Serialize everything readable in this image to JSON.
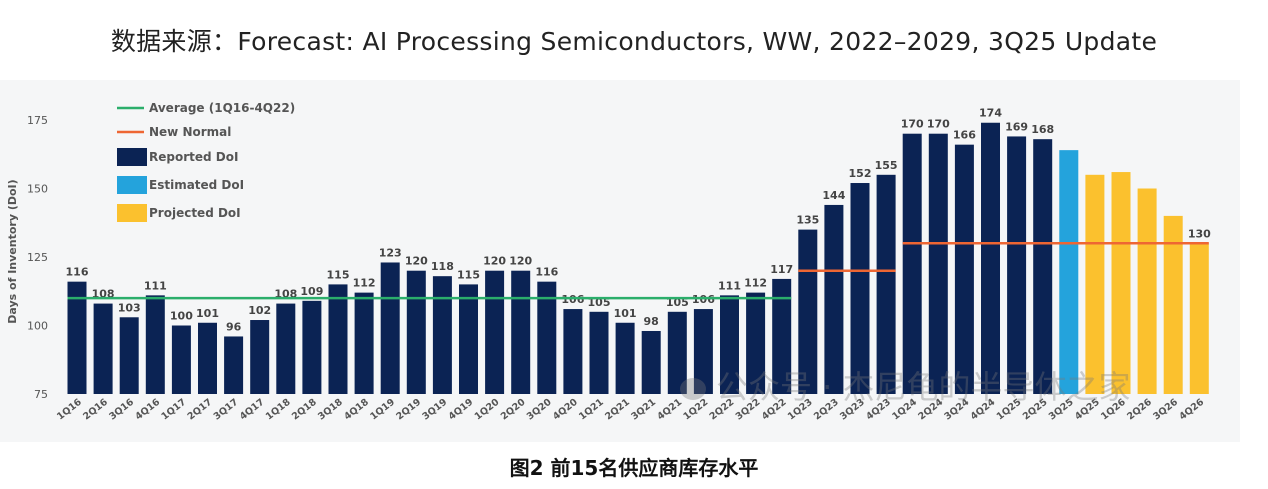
{
  "header": {
    "source_title": "数据来源：Forecast: AI Processing Semiconductors, WW, 2022–2029, 3Q25 Update"
  },
  "caption": "图2 前15名供应商库存水平",
  "watermark": "公众号 · 杰尼龟的半导体之家",
  "colors": {
    "reported": "#0b2354",
    "estimated": "#24a3dc",
    "projected": "#fbc12e",
    "average_line": "#2bae6b",
    "new_normal_line": "#ee6633",
    "axis_text": "#555555",
    "background": "#f5f6f7"
  },
  "chart_data": {
    "type": "bar",
    "title": "",
    "xlabel": "",
    "ylabel": "Days of Inventory (DoI)",
    "ylim": [
      75,
      180
    ],
    "yticks": [
      75,
      100,
      125,
      150,
      175
    ],
    "grid": false,
    "legend_position": "top-left",
    "legend": [
      {
        "label": "Average (1Q16-4Q22)",
        "kind": "line",
        "color": "#2bae6b"
      },
      {
        "label": "New Normal",
        "kind": "line",
        "color": "#ee6633"
      },
      {
        "label": "Reported DoI",
        "kind": "box",
        "color": "#0b2354"
      },
      {
        "label": "Estimated DoI",
        "kind": "box",
        "color": "#24a3dc"
      },
      {
        "label": "Projected DoI",
        "kind": "box",
        "color": "#fbc12e"
      }
    ],
    "categories": [
      "1Q16",
      "2Q16",
      "3Q16",
      "4Q16",
      "1Q17",
      "2Q17",
      "3Q17",
      "4Q17",
      "1Q18",
      "2Q18",
      "3Q18",
      "4Q18",
      "1Q19",
      "2Q19",
      "3Q19",
      "4Q19",
      "1Q20",
      "2Q20",
      "3Q20",
      "4Q20",
      "1Q21",
      "2Q21",
      "3Q21",
      "4Q21",
      "1Q22",
      "2Q22",
      "3Q22",
      "4Q22",
      "1Q23",
      "2Q23",
      "3Q23",
      "4Q23",
      "1Q24",
      "2Q24",
      "3Q24",
      "4Q24",
      "1Q25",
      "2Q25",
      "3Q25",
      "4Q25",
      "1Q26",
      "2Q26",
      "3Q26",
      "4Q26"
    ],
    "values": [
      116,
      108,
      103,
      111,
      100,
      101,
      96,
      102,
      108,
      109,
      115,
      112,
      123,
      120,
      118,
      115,
      120,
      120,
      116,
      106,
      105,
      101,
      98,
      105,
      106,
      111,
      112,
      117,
      135,
      144,
      152,
      155,
      170,
      170,
      166,
      174,
      169,
      168,
      164,
      155,
      156,
      150,
      140,
      130
    ],
    "bar_types": [
      "reported",
      "reported",
      "reported",
      "reported",
      "reported",
      "reported",
      "reported",
      "reported",
      "reported",
      "reported",
      "reported",
      "reported",
      "reported",
      "reported",
      "reported",
      "reported",
      "reported",
      "reported",
      "reported",
      "reported",
      "reported",
      "reported",
      "reported",
      "reported",
      "reported",
      "reported",
      "reported",
      "reported",
      "reported",
      "reported",
      "reported",
      "reported",
      "reported",
      "reported",
      "reported",
      "reported",
      "reported",
      "reported",
      "estimated",
      "projected",
      "projected",
      "projected",
      "projected",
      "projected"
    ],
    "data_labels": [
      "116",
      "108",
      "103",
      "111",
      "100",
      "101",
      "96",
      "102",
      "108",
      "109",
      "115",
      "112",
      "123",
      "120",
      "118",
      "115",
      "120",
      "120",
      "116",
      "106",
      "105",
      "101",
      "98",
      "105",
      "106",
      "111",
      "112",
      "117",
      "135",
      "144",
      "152",
      "155",
      "170",
      "170",
      "166",
      "174",
      "169",
      "168",
      "",
      "",
      "",
      "",
      "",
      "130"
    ],
    "reference_lines": [
      {
        "name": "Average (1Q16-4Q22)",
        "value": 110,
        "from": "1Q16",
        "to": "4Q22",
        "color": "#2bae6b"
      },
      {
        "name": "New Normal",
        "value": 120,
        "from": "1Q23",
        "to": "4Q23",
        "color": "#ee6633"
      },
      {
        "name": "New Normal",
        "value": 130,
        "from": "1Q24",
        "to": "4Q26",
        "color": "#ee6633"
      }
    ]
  }
}
